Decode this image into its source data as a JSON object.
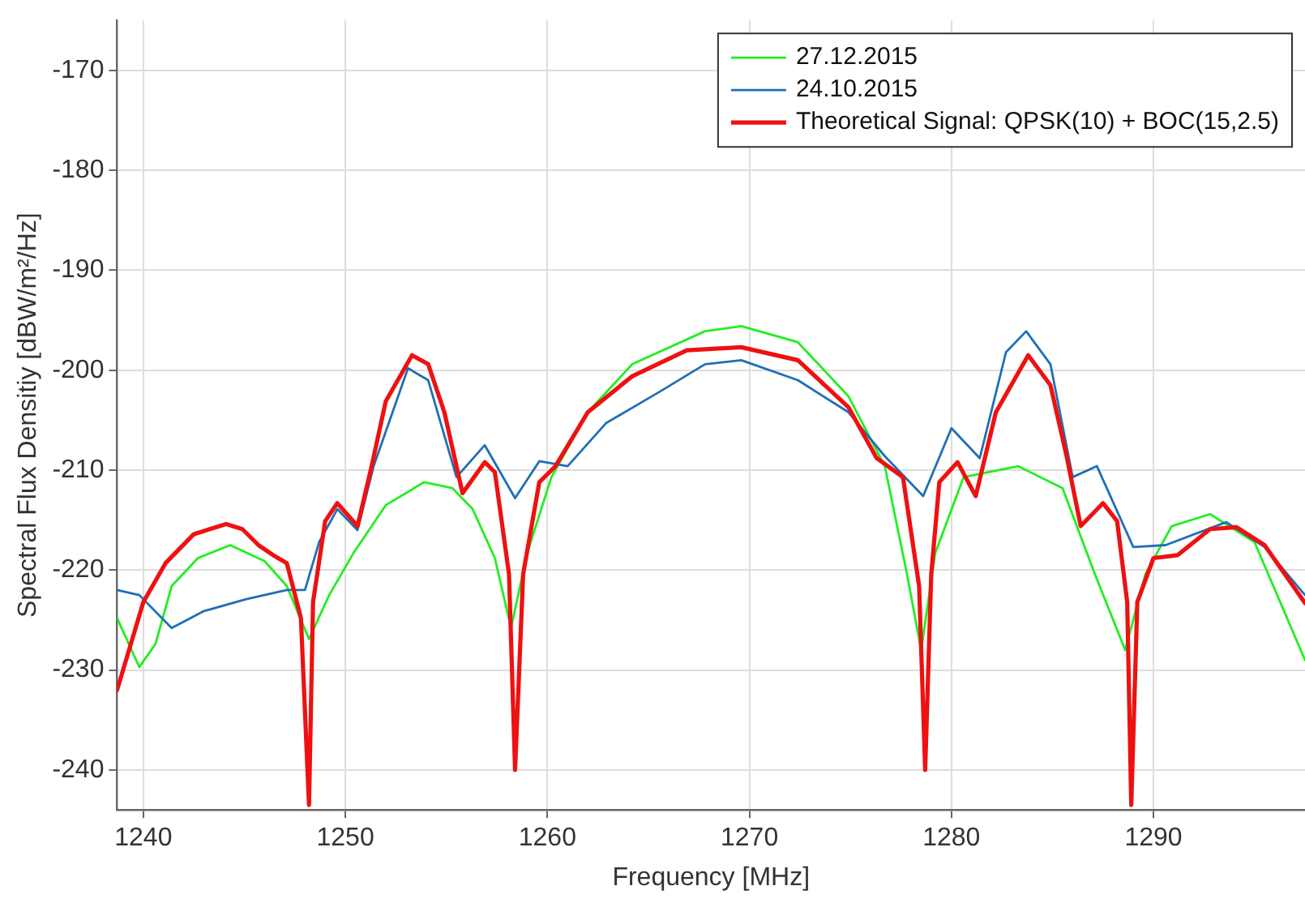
{
  "chart_data": {
    "type": "line",
    "xlabel": "Frequency [MHz]",
    "ylabel": "Spectral Flux Densitiy [dBW/m²/Hz]",
    "xlim": [
      1238.7,
      1297.5
    ],
    "ylim": [
      -244,
      -165
    ],
    "xticks": [
      1240,
      1250,
      1260,
      1270,
      1280,
      1290
    ],
    "yticks": [
      -240,
      -230,
      -220,
      -210,
      -200,
      -190,
      -180,
      -170
    ],
    "grid": true,
    "legend": "top right",
    "marker": "none",
    "line_style": "solid",
    "series": [
      {
        "name": "27.12.2015",
        "color": "#22ee22",
        "x": [
          1238.7,
          1239.8,
          1240.6,
          1241.4,
          1242.7,
          1244.3,
          1246.0,
          1247.1,
          1248.2,
          1249.2,
          1250.4,
          1252.0,
          1253.9,
          1255.3,
          1256.3,
          1257.4,
          1258.2,
          1259.0,
          1260.2,
          1262.0,
          1264.2,
          1267.8,
          1269.6,
          1272.4,
          1274.9,
          1276.7,
          1277.8,
          1278.5,
          1279.2,
          1280.6,
          1283.3,
          1285.5,
          1287.1,
          1288.6,
          1289.6,
          1290.9,
          1292.8,
          1295.0,
          1297.5
        ],
        "values": [
          -224.8,
          -229.7,
          -227.4,
          -221.6,
          -218.8,
          -217.5,
          -219.1,
          -221.6,
          -226.9,
          -222.5,
          -218.3,
          -213.5,
          -211.2,
          -211.8,
          -213.9,
          -218.8,
          -225.8,
          -218.3,
          -210.7,
          -204.2,
          -199.4,
          -196.1,
          -195.6,
          -197.2,
          -202.6,
          -209.6,
          -220.4,
          -228.0,
          -218.3,
          -210.7,
          -209.6,
          -211.8,
          -220.4,
          -228.0,
          -220.4,
          -215.6,
          -214.4,
          -217.2,
          -229.0
        ]
      },
      {
        "name": "24.10.2015",
        "color": "#1f6fb5",
        "x": [
          1238.7,
          1239.8,
          1241.4,
          1243.0,
          1245.1,
          1247.1,
          1248.0,
          1248.7,
          1249.6,
          1250.6,
          1251.4,
          1253.1,
          1254.1,
          1255.5,
          1256.9,
          1258.4,
          1259.6,
          1261.0,
          1262.9,
          1265.6,
          1267.8,
          1269.6,
          1272.4,
          1274.9,
          1276.7,
          1278.6,
          1280.0,
          1281.4,
          1282.7,
          1283.7,
          1284.9,
          1286.0,
          1287.2,
          1289.0,
          1290.6,
          1293.6,
          1295.5,
          1297.5
        ],
        "values": [
          -222.0,
          -222.5,
          -225.8,
          -224.1,
          -222.9,
          -222.0,
          -222.0,
          -217.2,
          -213.9,
          -216.0,
          -209.6,
          -199.8,
          -201.0,
          -210.7,
          -207.5,
          -212.8,
          -209.1,
          -209.6,
          -205.3,
          -202.1,
          -199.4,
          -199.0,
          -201.0,
          -204.2,
          -208.6,
          -212.6,
          -205.8,
          -208.8,
          -198.2,
          -196.1,
          -199.4,
          -210.7,
          -209.6,
          -217.7,
          -217.5,
          -215.2,
          -217.7,
          -222.5
        ]
      },
      {
        "name": "Theoretical Signal: QPSK(10) + BOC(15,2.5)",
        "color": "#ee1111",
        "x": [
          1238.7,
          1240.0,
          1241.1,
          1242.5,
          1244.1,
          1244.9,
          1245.7,
          1246.5,
          1247.1,
          1247.8,
          1248.2,
          1248.4,
          1249.0,
          1249.6,
          1250.6,
          1251.3,
          1252.0,
          1253.3,
          1254.1,
          1254.9,
          1255.8,
          1256.9,
          1257.4,
          1258.1,
          1258.4,
          1258.8,
          1259.6,
          1260.4,
          1262.0,
          1264.2,
          1266.9,
          1269.6,
          1272.4,
          1274.9,
          1276.3,
          1277.6,
          1278.4,
          1278.7,
          1279.0,
          1279.4,
          1280.3,
          1281.2,
          1282.2,
          1283.8,
          1284.9,
          1285.7,
          1286.4,
          1287.5,
          1288.2,
          1288.7,
          1288.9,
          1289.2,
          1290.0,
          1291.2,
          1292.8,
          1294.1,
          1295.5,
          1297.5
        ],
        "values": [
          -232.0,
          -223.2,
          -219.3,
          -216.4,
          -215.4,
          -215.9,
          -217.5,
          -218.6,
          -219.3,
          -224.8,
          -243.5,
          -223.2,
          -215.1,
          -213.3,
          -215.6,
          -209.6,
          -203.1,
          -198.5,
          -199.4,
          -204.2,
          -212.3,
          -209.2,
          -210.2,
          -220.4,
          -240.0,
          -220.4,
          -211.2,
          -209.6,
          -204.2,
          -200.6,
          -198.0,
          -197.7,
          -199.0,
          -203.7,
          -208.8,
          -210.7,
          -221.6,
          -240.0,
          -220.4,
          -211.2,
          -209.2,
          -212.6,
          -204.2,
          -198.5,
          -201.5,
          -208.6,
          -215.6,
          -213.3,
          -215.1,
          -223.2,
          -243.5,
          -223.2,
          -218.8,
          -218.5,
          -215.9,
          -215.7,
          -217.5,
          -223.3
        ]
      }
    ]
  }
}
